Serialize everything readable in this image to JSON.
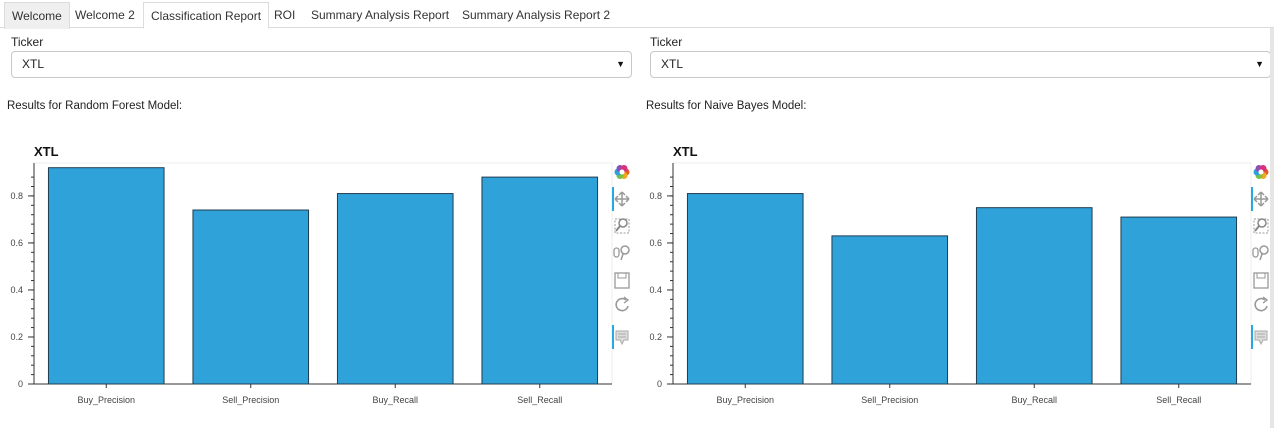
{
  "tabs": [
    {
      "label": "Welcome",
      "state": "boxed"
    },
    {
      "label": "Welcome 2",
      "state": "plain"
    },
    {
      "label": "Classification Report",
      "state": "active"
    },
    {
      "label": "ROI",
      "state": "plain"
    },
    {
      "label": "Summary Analysis Report",
      "state": "plain"
    },
    {
      "label": "Summary Analysis Report 2",
      "state": "plain"
    }
  ],
  "left_panel": {
    "ticker_label": "Ticker",
    "ticker_value": "XTL",
    "caret": "▼",
    "results_text": "Results for Random Forest Model:"
  },
  "right_panel": {
    "ticker_label": "Ticker",
    "ticker_value": "XTL",
    "caret": "▼",
    "results_text": "Results for Naive Bayes Model:"
  },
  "toolbar_icons": [
    "bokeh-logo-icon",
    "pan-icon",
    "box-zoom-icon",
    "wheel-zoom-icon",
    "save-icon",
    "reset-icon",
    "hover-icon"
  ],
  "colors": {
    "bar": "#30a2da",
    "bar_stroke": "#1f3d4f",
    "accent": "#26aae1"
  },
  "chart_data": [
    {
      "type": "bar",
      "title": "XTL",
      "categories": [
        "Buy_Precision",
        "Sell_Precision",
        "Buy_Recall",
        "Sell_Recall"
      ],
      "values": [
        0.92,
        0.74,
        0.81,
        0.88
      ],
      "yticks": [
        "0",
        "0.2",
        "0.4",
        "0.6",
        "0.8"
      ],
      "ylim": [
        0,
        0.94
      ],
      "xlabel": "",
      "ylabel": ""
    },
    {
      "type": "bar",
      "title": "XTL",
      "categories": [
        "Buy_Precision",
        "Sell_Precision",
        "Buy_Recall",
        "Sell_Recall"
      ],
      "values": [
        0.81,
        0.63,
        0.75,
        0.71
      ],
      "yticks": [
        "0",
        "0.2",
        "0.4",
        "0.6",
        "0.8"
      ],
      "ylim": [
        0,
        0.94
      ],
      "xlabel": "",
      "ylabel": ""
    }
  ]
}
